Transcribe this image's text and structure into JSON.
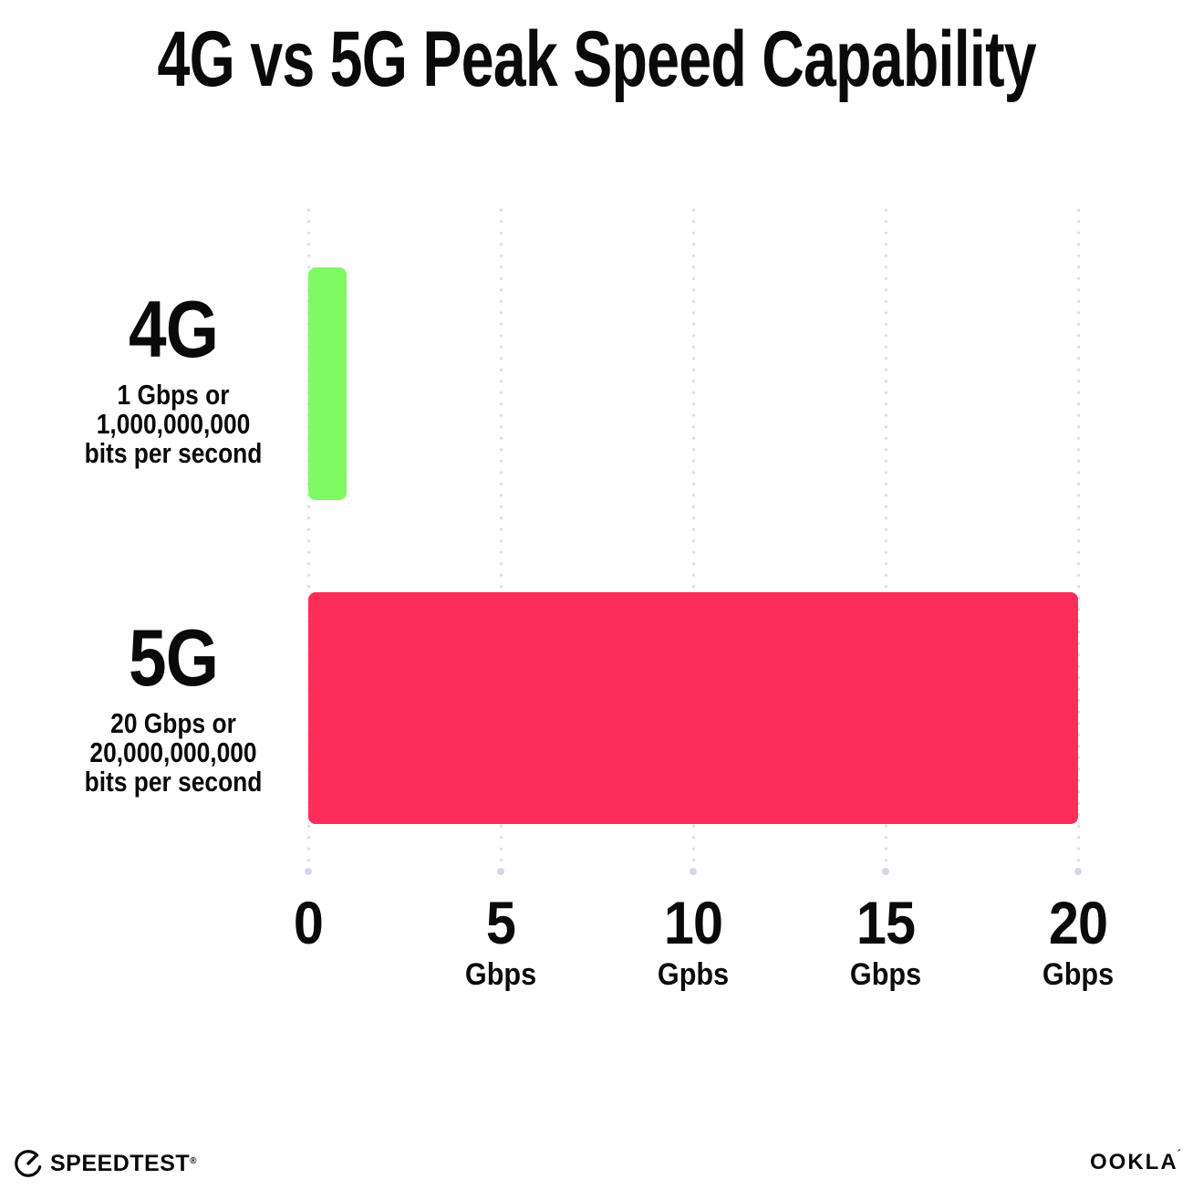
{
  "title": "4G vs 5G Peak Speed Capability",
  "chart_data": {
    "type": "bar",
    "orientation": "horizontal",
    "title": "4G vs 5G Peak Speed Capability",
    "categories": [
      "4G",
      "5G"
    ],
    "values": [
      1,
      20
    ],
    "value_unit": "Gbps",
    "xlim": [
      0,
      20
    ],
    "grid": "dotted-vertical",
    "legend": "none",
    "series_labels": [
      {
        "name": "4G",
        "sublabel_lines": [
          "1 Gbps or",
          "1,000,000,000",
          "bits per second"
        ],
        "color": "#7ffa63"
      },
      {
        "name": "5G",
        "sublabel_lines": [
          "20 Gbps or",
          "20,000,000,000",
          "bits per second"
        ],
        "color": "#fc2d58"
      }
    ],
    "x_ticks": [
      {
        "value": 0,
        "label": "0",
        "unit": ""
      },
      {
        "value": 5,
        "label": "5",
        "unit": "Gbps"
      },
      {
        "value": 10,
        "label": "10",
        "unit": "Gpbs"
      },
      {
        "value": 15,
        "label": "15",
        "unit": "Gbps"
      },
      {
        "value": 20,
        "label": "20",
        "unit": "Gbps"
      }
    ]
  },
  "footer": {
    "speedtest_label": "SPEEDTEST",
    "speedtest_mark": "®",
    "ookla_label": "OOKLA",
    "ookla_mark": "´"
  },
  "colors": {
    "bar_4g": "#7ffa63",
    "bar_5g": "#fc2d58",
    "grid_dot": "#d8dce9",
    "text": "#0a0a0a",
    "background": "#ffffff"
  }
}
